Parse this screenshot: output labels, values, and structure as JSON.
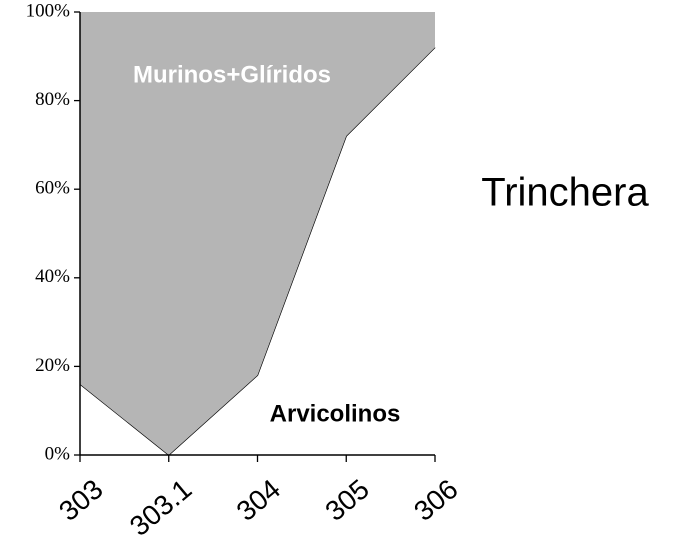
{
  "chart_data": {
    "type": "stacked_area",
    "title": "Trinchera",
    "categories": [
      "303",
      "303.1",
      "304",
      "305",
      "306"
    ],
    "series": [
      {
        "name": "Arvicolinos",
        "color": "#ffffff",
        "values": [
          16,
          0,
          18,
          72,
          92
        ]
      },
      {
        "name": "Murinos+Glíridos",
        "color": "#b5b5b5",
        "values": [
          84,
          100,
          82,
          28,
          8
        ]
      }
    ],
    "ylim": [
      0,
      100
    ],
    "yticks": [
      {
        "value": 0,
        "label": "0%"
      },
      {
        "value": 20,
        "label": "20%"
      },
      {
        "value": 40,
        "label": "40%"
      },
      {
        "value": 60,
        "label": "60%"
      },
      {
        "value": 80,
        "label": "80%"
      },
      {
        "value": 100,
        "label": "100%"
      }
    ]
  }
}
